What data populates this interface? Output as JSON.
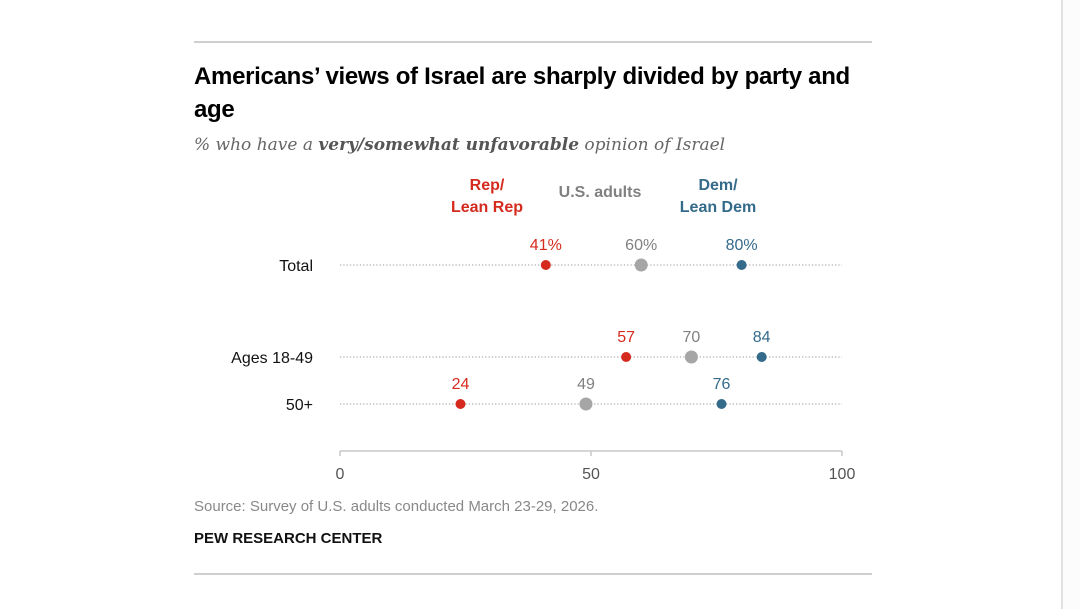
{
  "title": "Americans’ views of Israel are sharply divided by party and age",
  "subtitle": {
    "prefix": "% who have a ",
    "emphasis": "very/somewhat unfavorable",
    "suffix": " opinion of Israel"
  },
  "source": "Source: Survey of U.S. adults conducted March 23-29, 2026.",
  "brand": "PEW RESEARCH CENTER",
  "colors": {
    "rep": "#d52b1e",
    "adults": "#a6a6a6",
    "dem": "#346a8a",
    "adults_label": "#808080"
  },
  "chart_data": {
    "type": "scatter",
    "subtype": "dot-plot",
    "title": "Americans’ views of Israel are sharply divided by party and age",
    "subtitle": "% who have a very/somewhat unfavorable opinion of Israel",
    "categories": [
      "Total",
      "Ages 18-49",
      "50+"
    ],
    "series": [
      {
        "name": "Rep/ Lean Rep",
        "key": "rep",
        "label_lines": [
          "Rep/",
          "Lean Rep"
        ],
        "values": [
          41,
          57,
          24
        ],
        "labels": [
          "41%",
          "57",
          "24"
        ]
      },
      {
        "name": "U.S. adults",
        "key": "adults",
        "label_lines": [
          "U.S. adults"
        ],
        "values": [
          60,
          70,
          49
        ],
        "labels": [
          "60%",
          "70",
          "49"
        ]
      },
      {
        "name": "Dem/ Lean Dem",
        "key": "dem",
        "label_lines": [
          "Dem/",
          "Lean Dem"
        ],
        "values": [
          80,
          84,
          76
        ],
        "labels": [
          "80%",
          "84",
          "76"
        ]
      }
    ],
    "xlim": [
      0,
      100
    ],
    "xticks": [
      0,
      50,
      100
    ],
    "xtick_labels": [
      "0",
      "50",
      "100"
    ],
    "xlabel": "",
    "ylabel": "",
    "grid": false,
    "legend": "top"
  }
}
